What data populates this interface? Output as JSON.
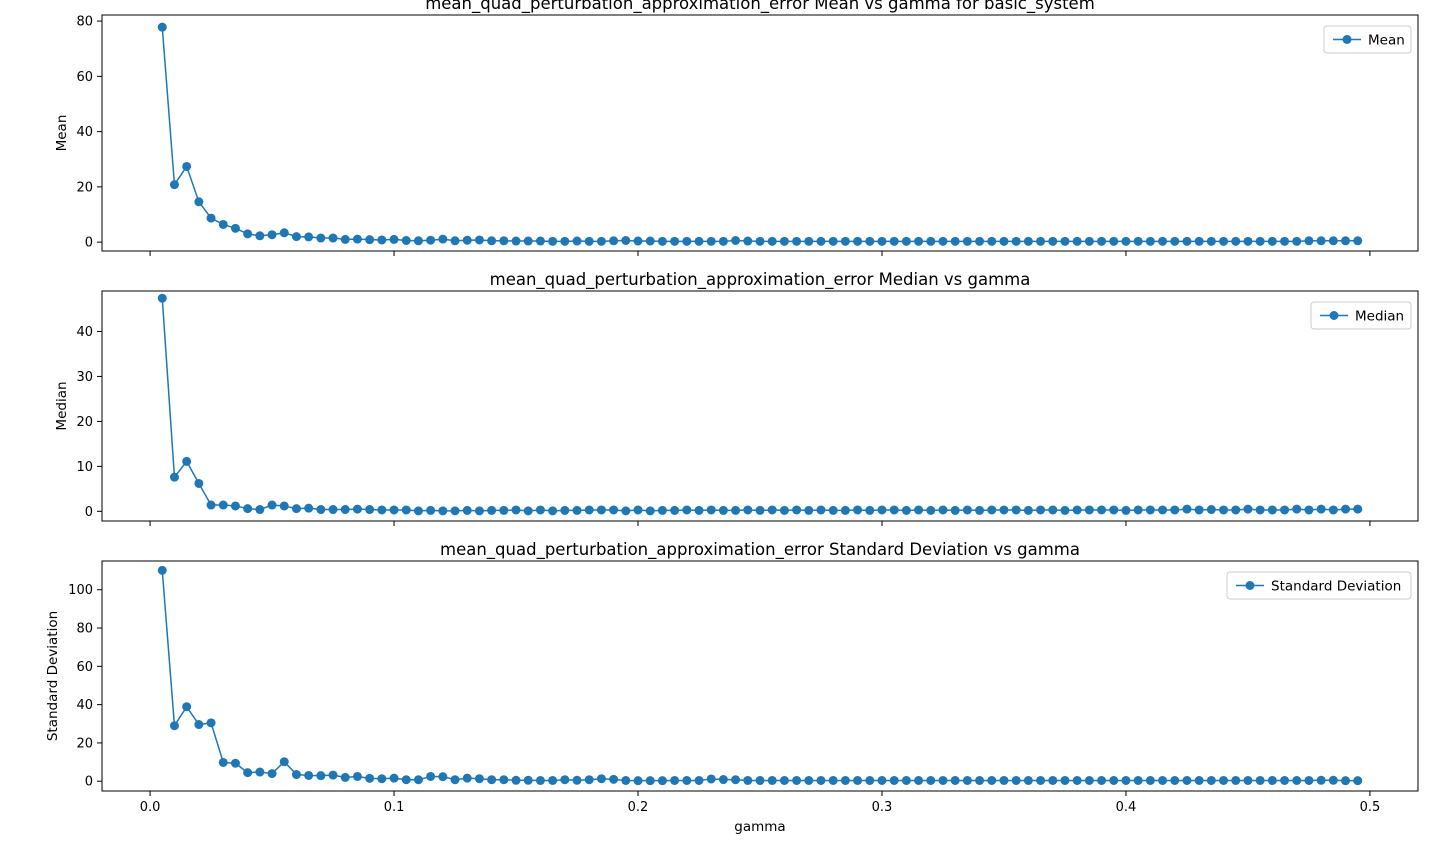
{
  "colors": {
    "series": "#1f77b4",
    "axes": "#000000",
    "legend_border": "#cccccc"
  },
  "chart_data": [
    {
      "type": "line",
      "title": "mean_quad_perturbation_approximation_error Mean vs gamma for basic_system",
      "xlabel": "",
      "ylabel": "Mean",
      "xlim": [
        -0.0197,
        0.5197
      ],
      "ylim": [
        -3.2,
        82.2
      ],
      "x_ticks": [
        0.0,
        0.1,
        0.2,
        0.3,
        0.4,
        0.5
      ],
      "x_tick_labels": [],
      "y_ticks": [
        0,
        20,
        40,
        60,
        80
      ],
      "y_tick_labels": [
        "0",
        "20",
        "40",
        "60",
        "80"
      ],
      "legend": {
        "position": "upper right"
      },
      "series": [
        {
          "name": "Mean",
          "marker": "circle",
          "x_start": 0.005,
          "x_step": 0.005,
          "values": [
            77.8,
            20.8,
            27.4,
            14.6,
            8.7,
            6.4,
            5.0,
            3.0,
            2.3,
            2.7,
            3.4,
            2.0,
            1.9,
            1.5,
            1.5,
            1.0,
            1.1,
            0.9,
            0.8,
            1.0,
            0.6,
            0.5,
            0.7,
            1.1,
            0.5,
            0.7,
            0.8,
            0.5,
            0.5,
            0.4,
            0.4,
            0.4,
            0.3,
            0.3,
            0.4,
            0.3,
            0.3,
            0.5,
            0.6,
            0.4,
            0.4,
            0.3,
            0.3,
            0.3,
            0.3,
            0.3,
            0.3,
            0.6,
            0.4,
            0.3,
            0.3,
            0.3,
            0.3,
            0.3,
            0.3,
            0.3,
            0.3,
            0.3,
            0.3,
            0.3,
            0.3,
            0.3,
            0.3,
            0.3,
            0.3,
            0.3,
            0.3,
            0.3,
            0.3,
            0.3,
            0.3,
            0.3,
            0.3,
            0.3,
            0.3,
            0.3,
            0.3,
            0.3,
            0.3,
            0.3,
            0.3,
            0.3,
            0.3,
            0.3,
            0.3,
            0.3,
            0.3,
            0.3,
            0.3,
            0.3,
            0.3,
            0.3,
            0.3,
            0.3,
            0.5,
            0.5,
            0.5,
            0.5,
            0.5
          ]
        }
      ]
    },
    {
      "type": "line",
      "title": "mean_quad_perturbation_approximation_error Median vs gamma",
      "xlabel": "",
      "ylabel": "Median",
      "xlim": [
        -0.0197,
        0.5197
      ],
      "ylim": [
        -2.15,
        49.0
      ],
      "x_ticks": [
        0.0,
        0.1,
        0.2,
        0.3,
        0.4,
        0.5
      ],
      "x_tick_labels": [],
      "y_ticks": [
        0,
        10,
        20,
        30,
        40
      ],
      "y_tick_labels": [
        "0",
        "10",
        "20",
        "30",
        "40"
      ],
      "legend": {
        "position": "upper right"
      },
      "series": [
        {
          "name": "Median",
          "marker": "circle",
          "x_start": 0.005,
          "x_step": 0.005,
          "values": [
            47.4,
            7.6,
            11.1,
            6.2,
            1.4,
            1.4,
            1.2,
            0.6,
            0.4,
            1.4,
            1.2,
            0.6,
            0.7,
            0.4,
            0.4,
            0.4,
            0.5,
            0.4,
            0.3,
            0.3,
            0.3,
            0.1,
            0.2,
            0.1,
            0.1,
            0.2,
            0.1,
            0.2,
            0.2,
            0.3,
            0.1,
            0.3,
            0.1,
            0.2,
            0.2,
            0.3,
            0.3,
            0.3,
            0.1,
            0.3,
            0.1,
            0.2,
            0.2,
            0.3,
            0.2,
            0.3,
            0.2,
            0.2,
            0.3,
            0.2,
            0.3,
            0.2,
            0.3,
            0.2,
            0.3,
            0.2,
            0.2,
            0.3,
            0.2,
            0.3,
            0.3,
            0.2,
            0.3,
            0.2,
            0.3,
            0.2,
            0.3,
            0.2,
            0.3,
            0.3,
            0.3,
            0.2,
            0.3,
            0.3,
            0.2,
            0.3,
            0.3,
            0.3,
            0.3,
            0.2,
            0.3,
            0.3,
            0.3,
            0.3,
            0.5,
            0.3,
            0.4,
            0.3,
            0.3,
            0.5,
            0.3,
            0.3,
            0.3,
            0.5,
            0.3,
            0.5,
            0.3,
            0.5,
            0.5
          ]
        }
      ]
    },
    {
      "type": "line",
      "title": "mean_quad_perturbation_approximation_error Standard Deviation vs gamma",
      "xlabel": "gamma",
      "ylabel": "Standard Deviation",
      "xlim": [
        -0.0197,
        0.5197
      ],
      "ylim": [
        -5.1,
        115.0
      ],
      "x_ticks": [
        0.0,
        0.1,
        0.2,
        0.3,
        0.4,
        0.5
      ],
      "x_tick_labels": [
        "0.0",
        "0.1",
        "0.2",
        "0.3",
        "0.4",
        "0.5"
      ],
      "y_ticks": [
        0,
        20,
        40,
        60,
        80,
        100
      ],
      "y_tick_labels": [
        "0",
        "20",
        "40",
        "60",
        "80",
        "100"
      ],
      "legend": {
        "position": "upper right"
      },
      "series": [
        {
          "name": "Standard Deviation",
          "marker": "circle",
          "x_start": 0.005,
          "x_step": 0.005,
          "values": [
            110.1,
            29.0,
            38.9,
            29.6,
            30.5,
            9.8,
            9.4,
            4.5,
            4.8,
            4.0,
            10.2,
            3.5,
            3.0,
            2.9,
            3.2,
            2.0,
            2.5,
            1.5,
            1.3,
            1.6,
            0.8,
            0.8,
            2.5,
            2.4,
            0.8,
            1.6,
            1.3,
            0.8,
            0.8,
            0.5,
            0.5,
            0.4,
            0.4,
            0.8,
            0.5,
            0.8,
            1.3,
            1.0,
            0.4,
            0.3,
            0.3,
            0.3,
            0.4,
            0.4,
            0.4,
            1.2,
            0.9,
            0.8,
            0.4,
            0.4,
            0.4,
            0.4,
            0.4,
            0.4,
            0.4,
            0.4,
            0.4,
            0.4,
            0.4,
            0.4,
            0.4,
            0.4,
            0.4,
            0.4,
            0.4,
            0.4,
            0.4,
            0.4,
            0.4,
            0.4,
            0.4,
            0.4,
            0.4,
            0.4,
            0.4,
            0.4,
            0.4,
            0.4,
            0.4,
            0.4,
            0.4,
            0.4,
            0.4,
            0.4,
            0.4,
            0.4,
            0.4,
            0.4,
            0.4,
            0.4,
            0.4,
            0.4,
            0.4,
            0.4,
            0.4,
            0.5,
            0.5,
            0.3,
            0.3
          ]
        }
      ]
    }
  ]
}
